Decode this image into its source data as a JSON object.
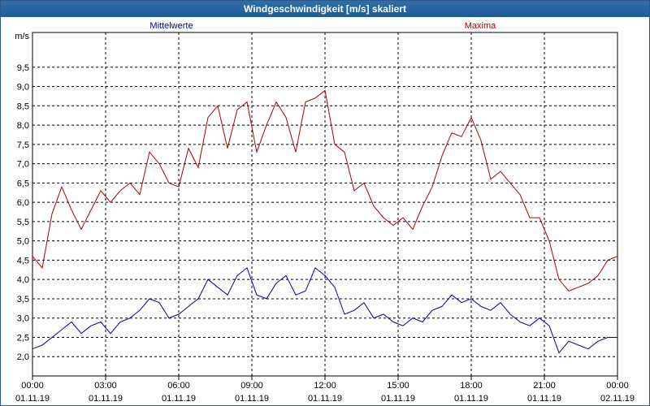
{
  "window": {
    "title": "Windgeschwindigkeit [m/s] skaliert"
  },
  "chart_data": {
    "type": "line",
    "title": "Windgeschwindigkeit [m/s] skaliert",
    "ylabel": "m/s",
    "ylim": [
      1.5,
      10.4
    ],
    "yticks": [
      "2.0",
      "2.5",
      "3.0",
      "3.5",
      "4.0",
      "4.5",
      "5.0",
      "5.5",
      "6.0",
      "6.5",
      "7.0",
      "7.5",
      "8.0",
      "8.5",
      "9.0",
      "9.5"
    ],
    "xrange_hours": [
      0,
      24
    ],
    "xticks": [
      {
        "time": "00:00",
        "date": "01.11.19"
      },
      {
        "time": "03:00",
        "date": "01.11.19"
      },
      {
        "time": "06:00",
        "date": "01.11.19"
      },
      {
        "time": "09:00",
        "date": "01.11.19"
      },
      {
        "time": "12:00",
        "date": "01.11.19"
      },
      {
        "time": "15:00",
        "date": "01.11.19"
      },
      {
        "time": "18:00",
        "date": "01.11.19"
      },
      {
        "time": "21:00",
        "date": "01.11.19"
      },
      {
        "time": "00:00",
        "date": "02.11.19"
      }
    ],
    "grid": true,
    "series": [
      {
        "name": "Mittelwerte",
        "color": "#0000aa",
        "x": [
          0,
          0.4,
          0.8,
          1.2,
          1.6,
          2.0,
          2.4,
          2.8,
          3.2,
          3.6,
          4.0,
          4.4,
          4.8,
          5.2,
          5.6,
          6.0,
          6.4,
          6.8,
          7.2,
          7.6,
          8.0,
          8.4,
          8.8,
          9.2,
          9.6,
          10.0,
          10.4,
          10.8,
          11.2,
          11.6,
          12.0,
          12.4,
          12.8,
          13.2,
          13.6,
          14.0,
          14.4,
          14.8,
          15.2,
          15.6,
          16.0,
          16.4,
          16.8,
          17.2,
          17.6,
          18.0,
          18.4,
          18.8,
          19.2,
          19.6,
          20.0,
          20.4,
          20.8,
          21.2,
          21.6,
          22.0,
          22.4,
          22.8,
          23.2,
          23.6,
          24.0
        ],
        "y": [
          2.2,
          2.3,
          2.5,
          2.7,
          2.9,
          2.6,
          2.8,
          2.9,
          2.6,
          2.9,
          3.0,
          3.2,
          3.5,
          3.4,
          3.0,
          3.1,
          3.3,
          3.5,
          4.0,
          3.8,
          3.6,
          4.1,
          4.3,
          3.6,
          3.5,
          3.9,
          4.1,
          3.6,
          3.7,
          4.3,
          4.1,
          3.8,
          3.1,
          3.2,
          3.4,
          3.0,
          3.1,
          2.9,
          2.8,
          3.0,
          2.9,
          3.2,
          3.3,
          3.6,
          3.4,
          3.5,
          3.3,
          3.2,
          3.4,
          3.1,
          2.9,
          2.8,
          3.0,
          2.8,
          2.1,
          2.4,
          2.3,
          2.2,
          2.4,
          2.5,
          2.5
        ]
      },
      {
        "name": "Maxima",
        "color": "#aa0000",
        "x": [
          0,
          0.4,
          0.8,
          1.2,
          1.6,
          2.0,
          2.4,
          2.8,
          3.2,
          3.6,
          4.0,
          4.4,
          4.8,
          5.2,
          5.6,
          6.0,
          6.4,
          6.8,
          7.2,
          7.6,
          8.0,
          8.4,
          8.8,
          9.2,
          9.6,
          10.0,
          10.4,
          10.8,
          11.2,
          11.6,
          12.0,
          12.4,
          12.8,
          13.2,
          13.6,
          14.0,
          14.4,
          14.8,
          15.2,
          15.6,
          16.0,
          16.4,
          16.8,
          17.2,
          17.6,
          18.0,
          18.4,
          18.8,
          19.2,
          19.6,
          20.0,
          20.4,
          20.8,
          21.2,
          21.6,
          22.0,
          22.4,
          22.8,
          23.2,
          23.6,
          24.0
        ],
        "y": [
          4.6,
          4.3,
          5.7,
          6.4,
          5.8,
          5.3,
          5.8,
          6.3,
          6.0,
          6.3,
          6.5,
          6.2,
          7.3,
          7.0,
          6.5,
          6.4,
          7.4,
          6.9,
          8.2,
          8.5,
          7.4,
          8.4,
          8.6,
          7.3,
          8.0,
          8.6,
          8.2,
          7.3,
          8.6,
          8.7,
          8.9,
          7.5,
          7.3,
          6.3,
          6.5,
          5.9,
          5.6,
          5.4,
          5.6,
          5.3,
          5.9,
          6.4,
          7.2,
          7.8,
          7.7,
          8.2,
          7.6,
          6.6,
          6.8,
          6.5,
          6.2,
          5.6,
          5.6,
          5.0,
          4.0,
          3.7,
          3.8,
          3.9,
          4.1,
          4.5,
          4.6
        ]
      }
    ]
  }
}
